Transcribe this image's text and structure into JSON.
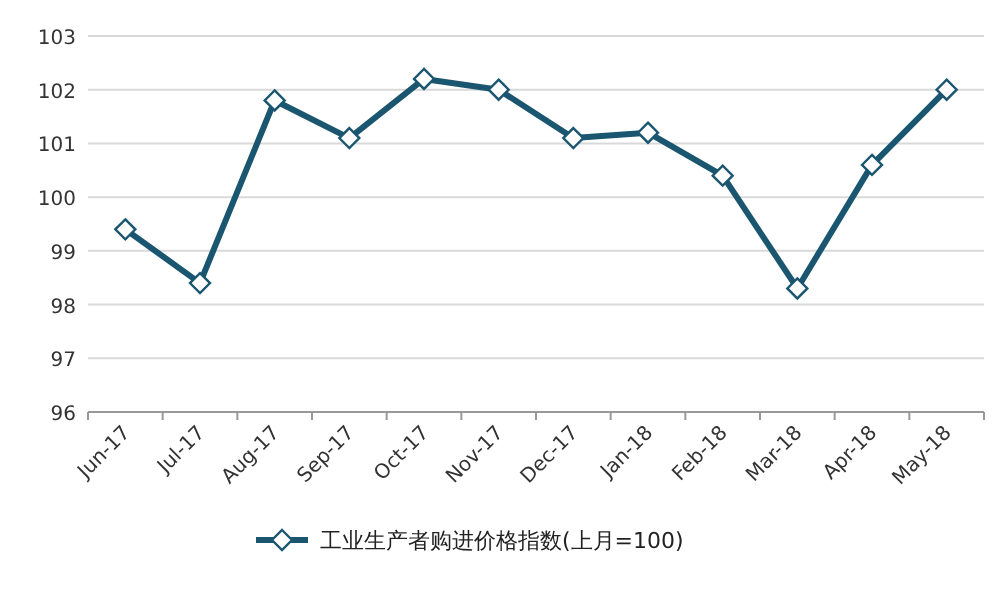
{
  "chart_data": {
    "type": "line",
    "categories": [
      "Jun-17",
      "Jul-17",
      "Aug-17",
      "Sep-17",
      "Oct-17",
      "Nov-17",
      "Dec-17",
      "Jan-18",
      "Feb-18",
      "Mar-18",
      "Apr-18",
      "May-18"
    ],
    "series": [
      {
        "name": "工业生产者购进价格指数(上月=100)",
        "color": "#1b5670",
        "values": [
          99.4,
          98.4,
          101.8,
          101.1,
          102.2,
          102.0,
          101.1,
          101.2,
          100.4,
          98.3,
          100.6,
          102.0
        ]
      }
    ],
    "ylim": [
      96,
      103
    ],
    "yticks": [
      96,
      97,
      98,
      99,
      100,
      101,
      102,
      103
    ],
    "grid": "y",
    "legend": "bottom",
    "marker": "diamond",
    "line_style": "solid"
  }
}
